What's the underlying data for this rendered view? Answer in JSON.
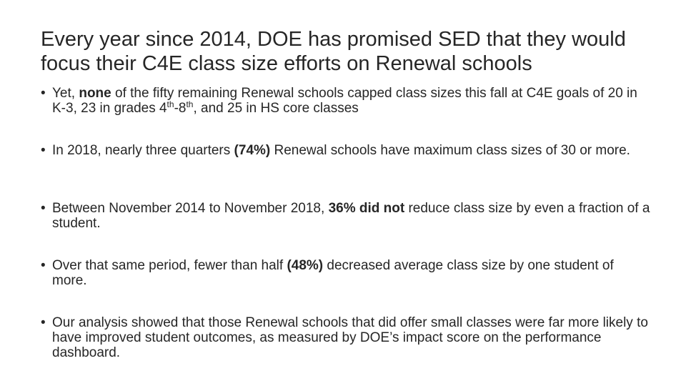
{
  "slide": {
    "title": "Every year since 2014, DOE has promised SED that they would focus their C4E class size efforts on Renewal schools",
    "bullet_marker": "•",
    "bullets": [
      {
        "parts": {
          "p1": "Yet, ",
          "b1": "none",
          "p2": " of the fifty remaining Renewal schools capped class sizes this fall at C4E goals of 20 in K-3, 23 in grades 4",
          "sup1": "th",
          "p3": "-8",
          "sup2": "th",
          "p4": ", and 25 in HS core classes"
        }
      },
      {
        "parts": {
          "p1": "In 2018, nearly three quarters ",
          "b1": "(74%)",
          "p2": " Renewal schools have maximum class sizes of 30 or more."
        }
      },
      {
        "parts": {
          "p1": "Between November 2014 to November 2018, ",
          "b1": "36% did not",
          "p2": " reduce class size by even a fraction of a student."
        }
      },
      {
        "parts": {
          "p1": "Over that same period, fewer than half ",
          "b1": "(48%)",
          "p2": " decreased average class size by one student of more."
        }
      },
      {
        "parts": {
          "p1": "Our analysis showed that those Renewal schools that did offer small classes were far more likely to have improved student outcomes, as measured by DOE’s  impact score on the performance dashboard."
        }
      }
    ]
  }
}
